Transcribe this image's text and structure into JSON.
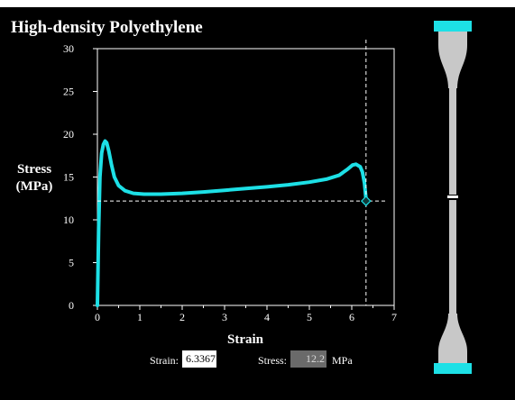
{
  "title": "High-density Polyethylene",
  "controls": {
    "strain_label": "Strain:",
    "strain_value": "6.3367",
    "stress_label": "Stress:",
    "stress_value": "12.2",
    "stress_unit": "MPa"
  },
  "colors": {
    "background": "#000000",
    "curve": "#1de0e6",
    "grip": "#1de0e6",
    "specimen": "#c8c8c8",
    "axis": "#ffffff"
  },
  "chart_data": {
    "type": "line",
    "ylabel_lines": [
      "Stress",
      "(MPa)"
    ],
    "xlabel": "Strain",
    "xlim": [
      0,
      7
    ],
    "ylim": [
      0,
      30
    ],
    "x_ticks": [
      "0",
      "1",
      "2",
      "3",
      "4",
      "5",
      "6",
      "7"
    ],
    "y_ticks": [
      "0",
      "5",
      "10",
      "15",
      "20",
      "25",
      "30"
    ],
    "grid": false,
    "series": [
      {
        "x": [
          0,
          0.03,
          0.06,
          0.1,
          0.14,
          0.18,
          0.22,
          0.27,
          0.33,
          0.4,
          0.5,
          0.65,
          0.85,
          1.1,
          1.5,
          2.0,
          2.5,
          3.0,
          3.5,
          4.0,
          4.5,
          5.0,
          5.4,
          5.7,
          5.9,
          6.02,
          6.1,
          6.2,
          6.25,
          6.3,
          6.34
        ],
        "y": [
          0,
          9,
          15,
          17.8,
          18.8,
          19.2,
          19.0,
          18.0,
          16.5,
          15.0,
          14.0,
          13.4,
          13.1,
          13.0,
          13.0,
          13.1,
          13.25,
          13.45,
          13.65,
          13.85,
          14.1,
          14.4,
          14.75,
          15.2,
          15.9,
          16.4,
          16.5,
          16.2,
          15.6,
          14.3,
          12.2
        ]
      }
    ],
    "cursor": {
      "x": 6.3367,
      "y": 12.2
    }
  },
  "specimen": {
    "strain": 6.3367,
    "fractured": true
  }
}
